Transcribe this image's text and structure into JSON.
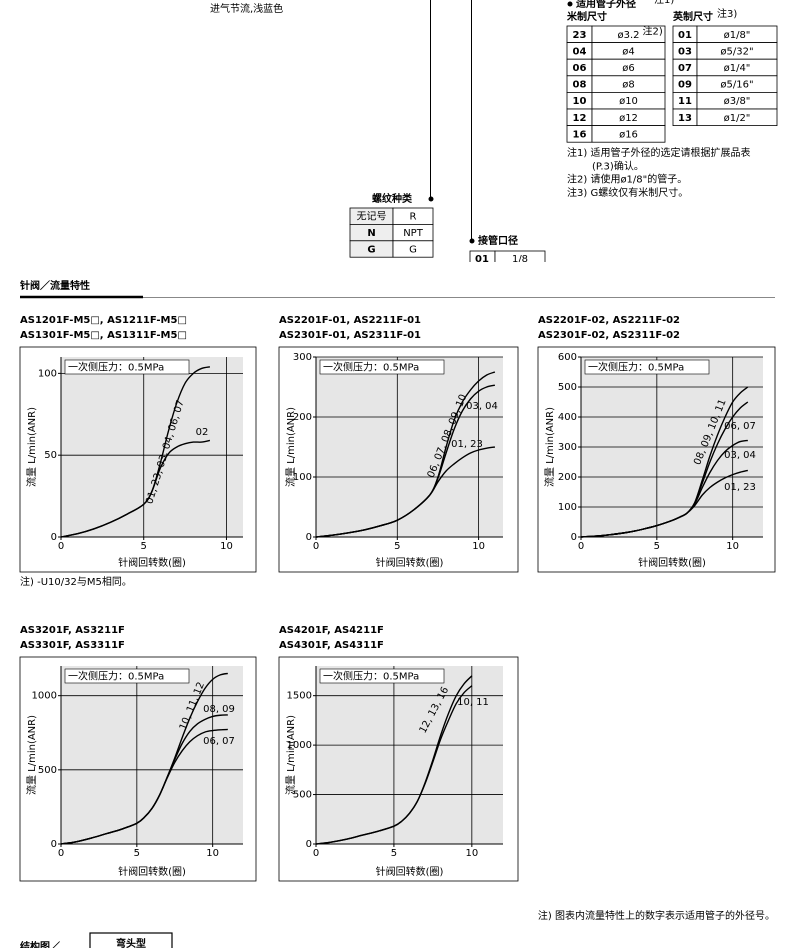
{
  "header": {
    "left_note": "进气节流,浅蓝色"
  },
  "tube_od": {
    "title": "适用管子外径",
    "title_note": "注1)",
    "metric_title": "米制尺寸",
    "inch_title": "英制尺寸",
    "inch_note": "注3)",
    "metric_rows": [
      [
        "23",
        "ø3.2",
        "注2)"
      ],
      [
        "04",
        "ø4"
      ],
      [
        "06",
        "ø6"
      ],
      [
        "08",
        "ø8"
      ],
      [
        "10",
        "ø10"
      ],
      [
        "12",
        "ø12"
      ],
      [
        "16",
        "ø16"
      ]
    ],
    "inch_rows": [
      [
        "01",
        "ø1/8\""
      ],
      [
        "03",
        "ø5/32\""
      ],
      [
        "07",
        "ø1/4\""
      ],
      [
        "09",
        "ø5/16\""
      ],
      [
        "11",
        "ø3/8\""
      ],
      [
        "13",
        "ø1/2\""
      ]
    ],
    "notes": [
      [
        "注1) 适用管子外径的选定请根据扩展品表",
        "(P.3)确认。"
      ],
      [
        "注2) 请使用ø1/8\"的管子。"
      ],
      [
        "注3) G螺纹仅有米制尺寸。"
      ]
    ]
  },
  "thread": {
    "title": "螺纹种类",
    "rows": [
      [
        "无记号",
        "R"
      ],
      [
        "N",
        "NPT"
      ],
      [
        "G",
        "G"
      ]
    ]
  },
  "port": {
    "title": "接管口径",
    "rows": [
      [
        "01",
        "1/8"
      ]
    ]
  },
  "section_title": "针阀／流量特性",
  "chart_data": [
    {
      "type": "line",
      "title_lines": [
        "AS1201F-M5□, AS1211F-M5□",
        "AS1301F-M5□, AS1311F-M5□"
      ],
      "annotation": "一次侧压力：0.5MPa",
      "xlabel": "针阀回转数(圈)",
      "ylabel": "流量 L/min(ANR)",
      "xlim": [
        0,
        11
      ],
      "ylim": [
        0,
        110
      ],
      "xticks": [
        0,
        5,
        10
      ],
      "yticks": [
        0,
        50,
        100
      ],
      "grid": true,
      "series": [
        {
          "name": "01, 23, 03, 04, 06, 07",
          "color": "#000000",
          "x": [
            0,
            1,
            2,
            3,
            4,
            5,
            5.5,
            6,
            6.5,
            7,
            7.5,
            8,
            8.5,
            9
          ],
          "values": [
            0,
            2,
            5,
            9,
            14,
            20,
            28,
            45,
            65,
            82,
            94,
            100,
            103,
            104
          ]
        },
        {
          "name": "02",
          "color": "#000000",
          "x": [
            0,
            1,
            2,
            3,
            4,
            5,
            5.5,
            6,
            6.5,
            7,
            7.5,
            8,
            8.5,
            9
          ],
          "values": [
            0,
            2,
            5,
            9,
            14,
            20,
            28,
            42,
            51,
            55,
            57,
            58,
            58,
            59
          ]
        }
      ]
    },
    {
      "type": "line",
      "title_lines": [
        "AS2201F-01, AS2211F-01",
        "AS2301F-01, AS2311F-01"
      ],
      "annotation": "一次侧压力：0.5MPa",
      "xlabel": "针阀回转数(圈)",
      "ylabel": "流量 L/min(ANR)",
      "xlim": [
        0,
        11.5
      ],
      "ylim": [
        0,
        300
      ],
      "xticks": [
        0,
        5,
        10
      ],
      "yticks": [
        0,
        100,
        200,
        300
      ],
      "grid": true,
      "series": [
        {
          "name": "06, 07, 08, 09, 10",
          "color": "#000000",
          "x": [
            0,
            1,
            2,
            3,
            4,
            5,
            6,
            7,
            7.5,
            8,
            8.5,
            9,
            9.5,
            10,
            10.5,
            11
          ],
          "values": [
            0,
            3,
            7,
            12,
            19,
            28,
            45,
            70,
            100,
            150,
            195,
            225,
            245,
            260,
            270,
            275
          ]
        },
        {
          "name": "03, 04",
          "color": "#000000",
          "x": [
            0,
            1,
            2,
            3,
            4,
            5,
            6,
            7,
            7.5,
            8,
            8.5,
            9,
            9.5,
            10,
            10.5,
            11
          ],
          "values": [
            0,
            3,
            7,
            12,
            19,
            28,
            45,
            70,
            98,
            140,
            180,
            210,
            230,
            243,
            250,
            253
          ]
        },
        {
          "name": "01, 23",
          "color": "#000000",
          "x": [
            0,
            1,
            2,
            3,
            4,
            5,
            6,
            7,
            7.5,
            8,
            8.5,
            9,
            9.5,
            10,
            10.5,
            11
          ],
          "values": [
            0,
            3,
            7,
            12,
            19,
            28,
            45,
            70,
            92,
            110,
            122,
            132,
            140,
            145,
            148,
            150
          ]
        }
      ]
    },
    {
      "type": "line",
      "title_lines": [
        "AS2201F-02, AS2211F-02",
        "AS2301F-02, AS2311F-02"
      ],
      "annotation": "一次侧压力：0.5MPa",
      "xlabel": "针阀回转数(圈)",
      "ylabel": "流量 L/min(ANR)",
      "xlim": [
        0,
        12
      ],
      "ylim": [
        0,
        600
      ],
      "xticks": [
        0,
        5,
        10
      ],
      "yticks": [
        0,
        100,
        200,
        300,
        400,
        500,
        600
      ],
      "grid": true,
      "series": [
        {
          "name": "08, 09, 10, 11",
          "color": "#000000",
          "x": [
            0,
            1,
            2,
            3,
            4,
            5,
            6,
            6.5,
            7,
            7.5,
            8,
            8.5,
            9,
            9.5,
            10,
            10.5,
            11
          ],
          "values": [
            0,
            3,
            8,
            15,
            25,
            38,
            55,
            66,
            80,
            115,
            190,
            270,
            340,
            400,
            450,
            480,
            500
          ]
        },
        {
          "name": "06, 07",
          "color": "#000000",
          "x": [
            0,
            1,
            2,
            3,
            4,
            5,
            6,
            6.5,
            7,
            7.5,
            8,
            8.5,
            9,
            9.5,
            10,
            10.5,
            11
          ],
          "values": [
            0,
            3,
            8,
            15,
            25,
            38,
            55,
            66,
            80,
            113,
            180,
            250,
            310,
            360,
            400,
            430,
            450
          ]
        },
        {
          "name": "03, 04",
          "color": "#000000",
          "x": [
            0,
            1,
            2,
            3,
            4,
            5,
            6,
            6.5,
            7,
            7.5,
            8,
            8.5,
            9,
            9.5,
            10,
            10.5,
            11
          ],
          "values": [
            0,
            3,
            8,
            15,
            25,
            38,
            55,
            66,
            80,
            110,
            165,
            215,
            255,
            285,
            305,
            318,
            322
          ]
        },
        {
          "name": "01, 23",
          "color": "#000000",
          "x": [
            0,
            1,
            2,
            3,
            4,
            5,
            6,
            6.5,
            7,
            7.5,
            8,
            8.5,
            9,
            9.5,
            10,
            10.5,
            11
          ],
          "values": [
            0,
            3,
            8,
            15,
            25,
            38,
            55,
            66,
            80,
            105,
            140,
            165,
            183,
            197,
            208,
            216,
            222
          ]
        }
      ]
    },
    {
      "type": "line",
      "title_lines": [
        "AS3201F, AS3211F",
        "AS3301F, AS3311F"
      ],
      "annotation": "一次侧压力：0.5MPa",
      "xlabel": "针阀回转数(圈)",
      "ylabel": "流量 L/min(ANR)",
      "xlim": [
        0,
        12
      ],
      "ylim": [
        0,
        1200
      ],
      "xticks": [
        0,
        5,
        10
      ],
      "yticks": [
        0,
        500,
        1000
      ],
      "grid": true,
      "series": [
        {
          "name": "10, 11, 12",
          "color": "#000000",
          "x": [
            0,
            1,
            2,
            3,
            4,
            5,
            5.5,
            6,
            6.5,
            7,
            7.5,
            8,
            8.5,
            9,
            9.5,
            10,
            10.5,
            11
          ],
          "values": [
            0,
            15,
            40,
            70,
            100,
            140,
            180,
            240,
            330,
            450,
            580,
            720,
            850,
            960,
            1050,
            1110,
            1140,
            1150
          ]
        },
        {
          "name": "08, 09",
          "color": "#000000",
          "x": [
            0,
            1,
            2,
            3,
            4,
            5,
            5.5,
            6,
            6.5,
            7,
            7.5,
            8,
            8.5,
            9,
            9.5,
            10,
            10.5,
            11
          ],
          "values": [
            0,
            15,
            40,
            70,
            100,
            140,
            180,
            240,
            330,
            450,
            570,
            680,
            760,
            810,
            840,
            860,
            868,
            870
          ]
        },
        {
          "name": "06, 07",
          "color": "#000000",
          "x": [
            0,
            1,
            2,
            3,
            4,
            5,
            5.5,
            6,
            6.5,
            7,
            7.5,
            8,
            8.5,
            9,
            9.5,
            10,
            10.5,
            11
          ],
          "values": [
            0,
            15,
            40,
            70,
            100,
            140,
            180,
            240,
            330,
            445,
            550,
            630,
            690,
            730,
            755,
            765,
            770,
            772
          ]
        }
      ]
    },
    {
      "type": "line",
      "title_lines": [
        "AS4201F, AS4211F",
        "AS4301F, AS4311F"
      ],
      "annotation": "一次侧压力：0.5MPa",
      "xlabel": "针阀回转数(圈)",
      "ylabel": "流量 L/min(ANR)",
      "xlim": [
        0,
        12
      ],
      "ylim": [
        0,
        1800
      ],
      "xticks": [
        0,
        5,
        10
      ],
      "yticks": [
        0,
        500,
        1000,
        1500
      ],
      "grid": true,
      "series": [
        {
          "name": "12, 13, 16",
          "color": "#000000",
          "x": [
            0,
            1,
            2,
            3,
            4,
            5,
            5.5,
            6,
            6.5,
            7,
            7.5,
            8,
            8.5,
            9,
            9.5,
            10
          ],
          "values": [
            0,
            20,
            50,
            90,
            130,
            180,
            230,
            310,
            430,
            620,
            850,
            1100,
            1320,
            1500,
            1620,
            1700
          ]
        },
        {
          "name": "10, 11",
          "color": "#000000",
          "x": [
            0,
            1,
            2,
            3,
            4,
            5,
            5.5,
            6,
            6.5,
            7,
            7.5,
            8,
            8.5,
            9,
            9.5,
            10
          ],
          "values": [
            0,
            20,
            50,
            90,
            130,
            180,
            230,
            310,
            430,
            610,
            830,
            1060,
            1250,
            1420,
            1530,
            1600
          ]
        }
      ]
    }
  ],
  "chart_note": "注) -U10/32与M5相同。",
  "figure_note": "注) 图表内流量特性上的数字表示适用管子的外径号。",
  "next_section": {
    "title": "结构图／",
    "tag": "弯头型"
  }
}
